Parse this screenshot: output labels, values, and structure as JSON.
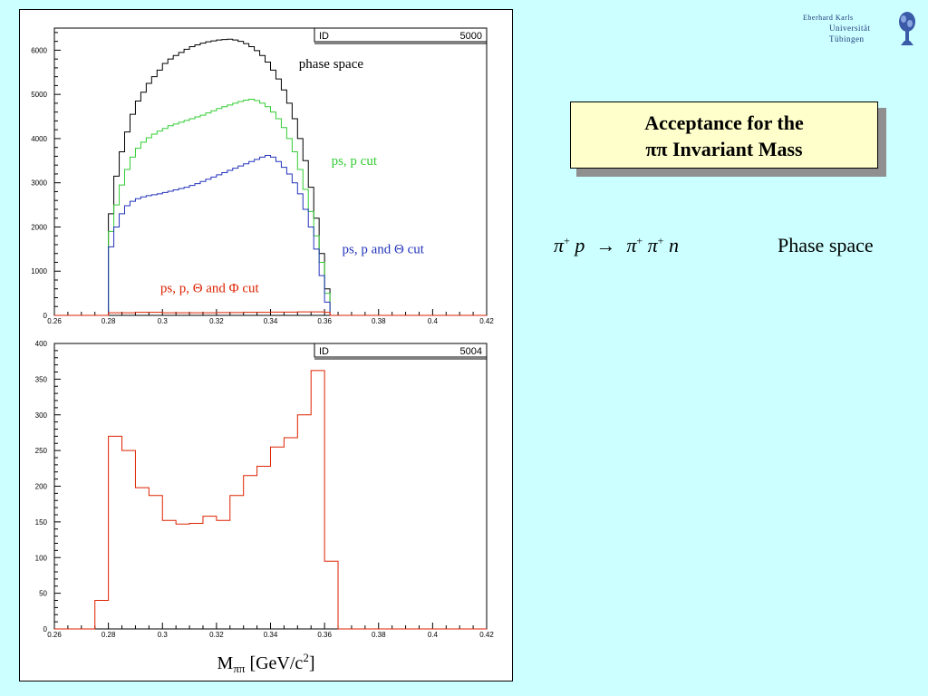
{
  "logo": {
    "line1": "Eberhard Karls",
    "line2": "Universität",
    "line3": "Tübingen",
    "icon": "tree-emblem-icon",
    "color": "#1f3a7a"
  },
  "title": {
    "line1": "Acceptance for the",
    "line2": "ππ Invariant Mass"
  },
  "reaction": {
    "pi1": "π",
    "sup1": "+",
    "p": "p",
    "arrow": "→",
    "pi2": "π",
    "sup2": "+",
    "pi3": "π",
    "sup3": "+",
    "n": "n"
  },
  "phase_space_label": "Phase space",
  "xaxis_label": {
    "main": "M",
    "sub": "ππ",
    "rest": " [GeV/c",
    "sup": "2",
    "close": "]"
  },
  "chart_data": [
    {
      "type": "line",
      "step": true,
      "id_label": "ID",
      "id_value": "5000",
      "xlim": [
        0.26,
        0.42
      ],
      "ylim": [
        0,
        6500
      ],
      "xticks": [
        0.26,
        0.28,
        0.3,
        0.32,
        0.34,
        0.36,
        0.38,
        0.4,
        0.42
      ],
      "xtick_labels": [
        "0.26",
        "0.28",
        "0.3",
        "0.32",
        "0.34",
        "0.36",
        "0.38",
        "0.4",
        "0.42"
      ],
      "yticks": [
        0,
        1000,
        2000,
        3000,
        4000,
        5000,
        6000
      ],
      "ytick_labels": [
        "0",
        "1000",
        "2000",
        "3000",
        "4000",
        "5000",
        "6000"
      ],
      "annotations": [
        {
          "text": "phase space",
          "x": 0.3505,
          "y": 5600,
          "color": "#000000"
        },
        {
          "text": "ps, p cut",
          "x": 0.3625,
          "y": 3400,
          "color": "#33cc33"
        },
        {
          "text": "ps, p and Θ cut",
          "x": 0.3665,
          "y": 1400,
          "color": "#2233bb"
        },
        {
          "text": "ps, p, Θ and Φ cut",
          "x": 0.2992,
          "y": 520,
          "color": "#dd2200"
        }
      ],
      "series": [
        {
          "color": "#000000",
          "x": [
            0.279,
            0.28,
            0.282,
            0.284,
            0.286,
            0.288,
            0.29,
            0.292,
            0.294,
            0.296,
            0.298,
            0.3,
            0.302,
            0.304,
            0.306,
            0.308,
            0.31,
            0.312,
            0.314,
            0.316,
            0.318,
            0.32,
            0.322,
            0.324,
            0.326,
            0.328,
            0.33,
            0.332,
            0.334,
            0.336,
            0.338,
            0.34,
            0.342,
            0.344,
            0.346,
            0.348,
            0.35,
            0.352,
            0.354,
            0.356,
            0.358,
            0.36,
            0.362,
            0.363
          ],
          "y": [
            0,
            2300,
            3150,
            3700,
            4150,
            4550,
            4850,
            5050,
            5250,
            5400,
            5550,
            5700,
            5800,
            5880,
            5950,
            6020,
            6080,
            6120,
            6160,
            6190,
            6210,
            6230,
            6240,
            6250,
            6230,
            6200,
            6150,
            6080,
            5990,
            5880,
            5730,
            5550,
            5350,
            5100,
            4800,
            4450,
            4000,
            3500,
            2900,
            2200,
            1400,
            600,
            0,
            0
          ]
        },
        {
          "color": "#33cc33",
          "x": [
            0.279,
            0.28,
            0.282,
            0.284,
            0.286,
            0.288,
            0.29,
            0.292,
            0.294,
            0.296,
            0.298,
            0.3,
            0.302,
            0.304,
            0.306,
            0.308,
            0.31,
            0.312,
            0.314,
            0.316,
            0.318,
            0.32,
            0.322,
            0.324,
            0.326,
            0.328,
            0.33,
            0.332,
            0.334,
            0.336,
            0.338,
            0.34,
            0.342,
            0.344,
            0.346,
            0.348,
            0.35,
            0.352,
            0.354,
            0.356,
            0.358,
            0.36,
            0.362,
            0.363
          ],
          "y": [
            0,
            1900,
            2500,
            2950,
            3300,
            3580,
            3780,
            3920,
            4020,
            4100,
            4170,
            4230,
            4290,
            4330,
            4370,
            4410,
            4450,
            4490,
            4530,
            4580,
            4630,
            4680,
            4720,
            4760,
            4800,
            4840,
            4870,
            4890,
            4860,
            4800,
            4720,
            4600,
            4450,
            4250,
            4000,
            3700,
            3300,
            2850,
            2350,
            1800,
            1200,
            500,
            0,
            0
          ]
        },
        {
          "color": "#2233bb",
          "x": [
            0.279,
            0.28,
            0.282,
            0.284,
            0.286,
            0.288,
            0.29,
            0.292,
            0.294,
            0.296,
            0.298,
            0.3,
            0.302,
            0.304,
            0.306,
            0.308,
            0.31,
            0.312,
            0.314,
            0.316,
            0.318,
            0.32,
            0.322,
            0.324,
            0.326,
            0.328,
            0.33,
            0.332,
            0.334,
            0.336,
            0.338,
            0.34,
            0.342,
            0.344,
            0.346,
            0.348,
            0.35,
            0.352,
            0.354,
            0.356,
            0.358,
            0.36,
            0.362,
            0.363
          ],
          "y": [
            0,
            1550,
            2000,
            2300,
            2480,
            2580,
            2640,
            2680,
            2710,
            2730,
            2750,
            2780,
            2810,
            2840,
            2870,
            2900,
            2940,
            2980,
            3030,
            3080,
            3130,
            3180,
            3230,
            3280,
            3330,
            3380,
            3430,
            3480,
            3530,
            3580,
            3620,
            3580,
            3480,
            3350,
            3200,
            3000,
            2750,
            2400,
            2000,
            1500,
            900,
            300,
            0,
            0
          ]
        },
        {
          "color": "#dd2200",
          "x": [
            0.279,
            0.28,
            0.29,
            0.3,
            0.31,
            0.32,
            0.33,
            0.34,
            0.35,
            0.36,
            0.362,
            0.363
          ],
          "y": [
            0,
            60,
            70,
            60,
            60,
            65,
            70,
            75,
            80,
            70,
            0,
            0
          ]
        }
      ]
    },
    {
      "type": "line",
      "step": true,
      "id_label": "ID",
      "id_value": "5004",
      "xlim": [
        0.26,
        0.42
      ],
      "ylim": [
        0,
        400
      ],
      "xticks": [
        0.26,
        0.28,
        0.3,
        0.32,
        0.34,
        0.36,
        0.38,
        0.4,
        0.42
      ],
      "xtick_labels": [
        "0.26",
        "0.28",
        "0.3",
        "0.32",
        "0.34",
        "0.36",
        "0.38",
        "0.4",
        "0.42"
      ],
      "yticks": [
        0,
        50,
        100,
        150,
        200,
        250,
        300,
        350,
        400
      ],
      "ytick_labels": [
        "0",
        "50",
        "100",
        "150",
        "200",
        "250",
        "300",
        "350",
        "400"
      ],
      "series": [
        {
          "color": "#dd2200",
          "x": [
            0.275,
            0.28,
            0.285,
            0.29,
            0.295,
            0.3,
            0.305,
            0.31,
            0.315,
            0.32,
            0.325,
            0.33,
            0.335,
            0.34,
            0.345,
            0.35,
            0.355,
            0.36,
            0.365
          ],
          "y": [
            40,
            270,
            250,
            198,
            187,
            152,
            147,
            148,
            158,
            152,
            187,
            215,
            228,
            255,
            268,
            300,
            362,
            95,
            0
          ]
        }
      ]
    }
  ]
}
